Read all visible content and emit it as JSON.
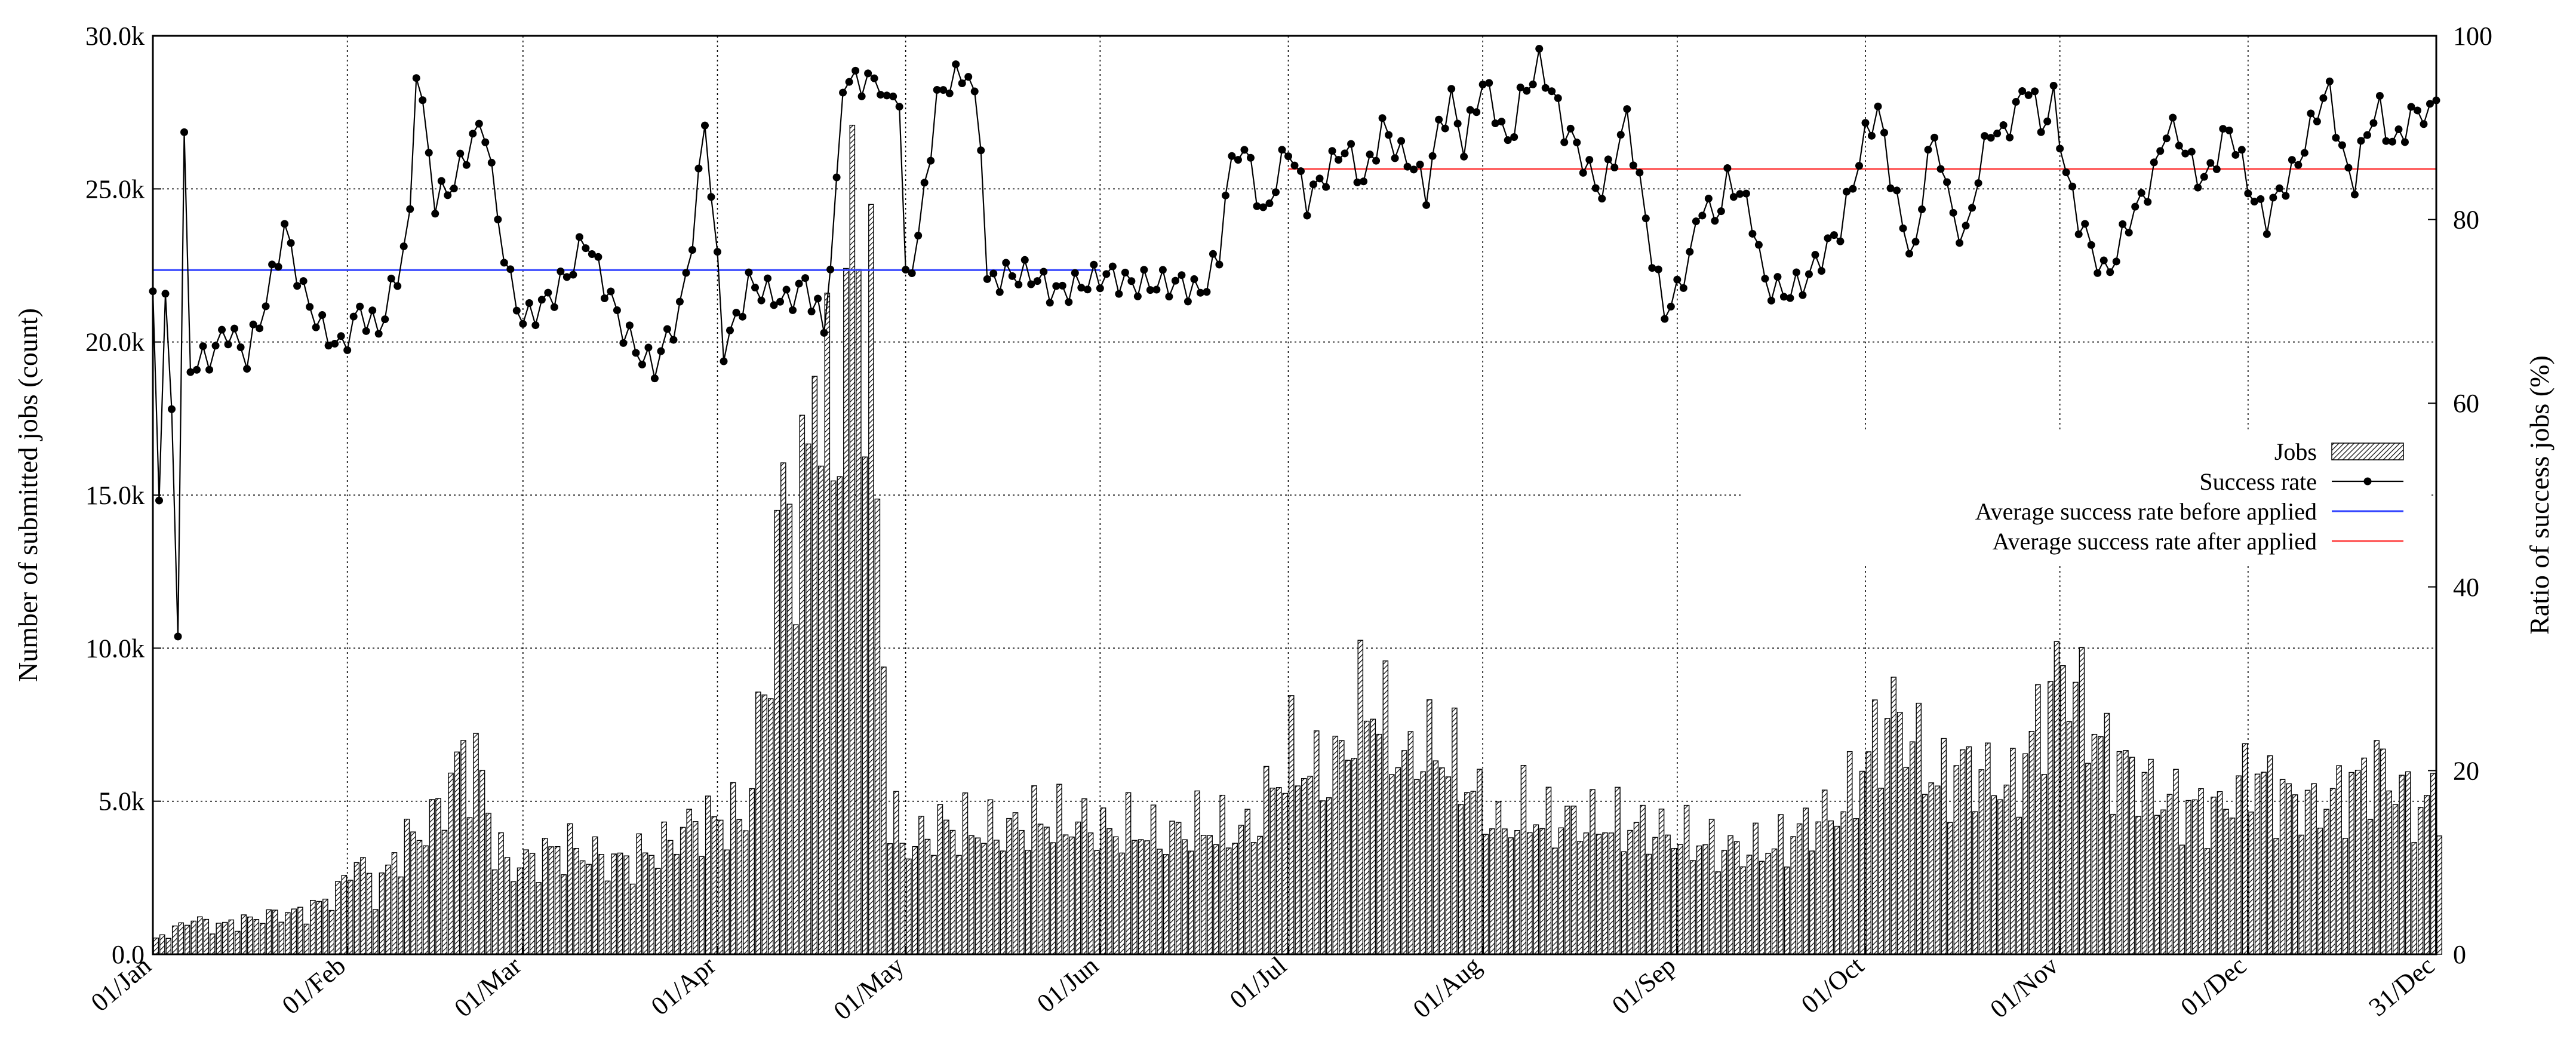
{
  "chart_data": {
    "type": "bar+line",
    "title": "",
    "ylabel_left": "Number of submitted jobs (count)",
    "ylabel_right": "Ratio of success jobs (%)",
    "x_tick_labels": [
      "01/Jan",
      "01/Feb",
      "01/Mar",
      "01/Apr",
      "01/May",
      "01/Jun",
      "01/Jul",
      "01/Aug",
      "01/Sep",
      "01/Oct",
      "01/Nov",
      "01/Dec",
      "31/Dec"
    ],
    "x_tick_days": [
      1,
      32,
      60,
      91,
      121,
      152,
      182,
      213,
      244,
      274,
      305,
      335,
      365
    ],
    "y_left": {
      "range": [
        0,
        30000
      ],
      "tick_values": [
        0,
        5000,
        10000,
        15000,
        20000,
        25000,
        30000
      ],
      "tick_labels": [
        "0.0",
        "5.0k",
        "10.0k",
        "15.0k",
        "20.0k",
        "25.0k",
        "30.0k"
      ]
    },
    "y_right": {
      "range": [
        0,
        100
      ],
      "tick_values": [
        0,
        20,
        40,
        60,
        80,
        100
      ],
      "tick_labels": [
        "0",
        "20",
        "40",
        "60",
        "80",
        "100"
      ]
    },
    "grid": true,
    "legend_position": "right, middle",
    "legend": [
      {
        "label": "Jobs",
        "style": "hatched-bar"
      },
      {
        "label": "Success rate",
        "style": "line-points"
      },
      {
        "label": "Average success rate before applied",
        "style": "line",
        "color": "#3344ff"
      },
      {
        "label": "Average success rate after applied",
        "style": "line",
        "color": "#ff4444"
      }
    ],
    "averages": {
      "before": {
        "value": 74.5,
        "x_range_days": [
          1,
          152
        ],
        "color": "#3344ff"
      },
      "after": {
        "value": 85.5,
        "x_range_days": [
          182,
          365
        ],
        "color": "#ff4444"
      }
    },
    "anchors": {
      "jobs": [
        [
          1,
          500
        ],
        [
          4,
          800
        ],
        [
          7,
          1200
        ],
        [
          10,
          900
        ],
        [
          15,
          1100
        ],
        [
          20,
          1300
        ],
        [
          25,
          1400
        ],
        [
          30,
          2000
        ],
        [
          33,
          3200
        ],
        [
          36,
          2000
        ],
        [
          40,
          3500
        ],
        [
          45,
          4300
        ],
        [
          50,
          6500
        ],
        [
          53,
          5800
        ],
        [
          55,
          3500
        ],
        [
          58,
          2800
        ],
        [
          62,
          3200
        ],
        [
          66,
          3500
        ],
        [
          70,
          3300
        ],
        [
          74,
          3000
        ],
        [
          78,
          3200
        ],
        [
          82,
          3500
        ],
        [
          85,
          4100
        ],
        [
          88,
          4300
        ],
        [
          91,
          4400
        ],
        [
          95,
          4500
        ],
        [
          98,
          8500
        ],
        [
          101,
          15000
        ],
        [
          104,
          14000
        ],
        [
          106,
          20000
        ],
        [
          109,
          16000
        ],
        [
          112,
          24000
        ],
        [
          115,
          20000
        ],
        [
          118,
          4500
        ],
        [
          121,
          3500
        ],
        [
          126,
          4200
        ],
        [
          131,
          4100
        ],
        [
          136,
          4000
        ],
        [
          141,
          4400
        ],
        [
          146,
          4300
        ],
        [
          150,
          4300
        ],
        [
          152,
          4000
        ],
        [
          157,
          4100
        ],
        [
          162,
          3800
        ],
        [
          167,
          4200
        ],
        [
          172,
          4000
        ],
        [
          176,
          4100
        ],
        [
          179,
          5500
        ],
        [
          182,
          6500
        ],
        [
          185,
          6000
        ],
        [
          188,
          5800
        ],
        [
          191,
          7000
        ],
        [
          194,
          8500
        ],
        [
          197,
          7500
        ],
        [
          200,
          6200
        ],
        [
          203,
          6800
        ],
        [
          207,
          6500
        ],
        [
          212,
          5000
        ],
        [
          216,
          4000
        ],
        [
          219,
          4800
        ],
        [
          222,
          4300
        ],
        [
          226,
          4400
        ],
        [
          231,
          4300
        ],
        [
          236,
          4200
        ],
        [
          241,
          4000
        ],
        [
          245,
          3800
        ],
        [
          250,
          3500
        ],
        [
          255,
          3400
        ],
        [
          260,
          3600
        ],
        [
          265,
          4300
        ],
        [
          270,
          4800
        ],
        [
          274,
          6500
        ],
        [
          278,
          8000
        ],
        [
          281,
          7000
        ],
        [
          285,
          5500
        ],
        [
          289,
          6200
        ],
        [
          293,
          5800
        ],
        [
          297,
          5400
        ],
        [
          300,
          7000
        ],
        [
          303,
          8500
        ],
        [
          305,
          9500
        ],
        [
          308,
          8200
        ],
        [
          312,
          6500
        ],
        [
          316,
          6000
        ],
        [
          320,
          5200
        ],
        [
          325,
          4800
        ],
        [
          330,
          4700
        ],
        [
          335,
          6000
        ],
        [
          340,
          5200
        ],
        [
          345,
          4800
        ],
        [
          350,
          5300
        ],
        [
          355,
          6200
        ],
        [
          358,
          5600
        ],
        [
          362,
          4600
        ],
        [
          365,
          5500
        ]
      ],
      "success_rate": [
        [
          1,
          71
        ],
        [
          2,
          51
        ],
        [
          3,
          71
        ],
        [
          4,
          59
        ],
        [
          5,
          36
        ],
        [
          6,
          88
        ],
        [
          7,
          64
        ],
        [
          10,
          65
        ],
        [
          13,
          68
        ],
        [
          16,
          65
        ],
        [
          19,
          71
        ],
        [
          22,
          79
        ],
        [
          25,
          72
        ],
        [
          28,
          68
        ],
        [
          31,
          66
        ],
        [
          34,
          70
        ],
        [
          37,
          68
        ],
        [
          40,
          74
        ],
        [
          42,
          80
        ],
        [
          43,
          97
        ],
        [
          46,
          82
        ],
        [
          49,
          84
        ],
        [
          52,
          89
        ],
        [
          54,
          90
        ],
        [
          56,
          80
        ],
        [
          58,
          73
        ],
        [
          60,
          69
        ],
        [
          62,
          70
        ],
        [
          65,
          72
        ],
        [
          68,
          75
        ],
        [
          70,
          78
        ],
        [
          73,
          73
        ],
        [
          76,
          68
        ],
        [
          79,
          65
        ],
        [
          81,
          64
        ],
        [
          83,
          67
        ],
        [
          85,
          70
        ],
        [
          87,
          78
        ],
        [
          88,
          84
        ],
        [
          89,
          91
        ],
        [
          91,
          75
        ],
        [
          92,
          66
        ],
        [
          94,
          69
        ],
        [
          96,
          73
        ],
        [
          99,
          72
        ],
        [
          102,
          71
        ],
        [
          105,
          73
        ],
        [
          107,
          70
        ],
        [
          108,
          68
        ],
        [
          110,
          83
        ],
        [
          111,
          95
        ],
        [
          114,
          95
        ],
        [
          117,
          95
        ],
        [
          118,
          92
        ],
        [
          119,
          94
        ],
        [
          120,
          93
        ],
        [
          121,
          73
        ],
        [
          123,
          78
        ],
        [
          126,
          93
        ],
        [
          128,
          95
        ],
        [
          131,
          96
        ],
        [
          133,
          89
        ],
        [
          134,
          73
        ],
        [
          137,
          74
        ],
        [
          141,
          74
        ],
        [
          145,
          72
        ],
        [
          149,
          73
        ],
        [
          153,
          74
        ],
        [
          157,
          73
        ],
        [
          161,
          73
        ],
        [
          165,
          73
        ],
        [
          168,
          72
        ],
        [
          171,
          76
        ],
        [
          172,
          83
        ],
        [
          174,
          88
        ],
        [
          176,
          86
        ],
        [
          178,
          80
        ],
        [
          182,
          88
        ],
        [
          185,
          82
        ],
        [
          188,
          85
        ],
        [
          191,
          88
        ],
        [
          194,
          84
        ],
        [
          197,
          90
        ],
        [
          200,
          87
        ],
        [
          202,
          86
        ],
        [
          204,
          83
        ],
        [
          206,
          90
        ],
        [
          208,
          93
        ],
        [
          210,
          88
        ],
        [
          213,
          95
        ],
        [
          215,
          92
        ],
        [
          217,
          88
        ],
        [
          219,
          93
        ],
        [
          222,
          97
        ],
        [
          224,
          94
        ],
        [
          226,
          90
        ],
        [
          228,
          88
        ],
        [
          230,
          85
        ],
        [
          232,
          83
        ],
        [
          234,
          87
        ],
        [
          236,
          91
        ],
        [
          238,
          84
        ],
        [
          240,
          76
        ],
        [
          242,
          70
        ],
        [
          244,
          72
        ],
        [
          246,
          76
        ],
        [
          248,
          82
        ],
        [
          250,
          80
        ],
        [
          252,
          84
        ],
        [
          254,
          83
        ],
        [
          256,
          80
        ],
        [
          258,
          73
        ],
        [
          261,
          72
        ],
        [
          264,
          73
        ],
        [
          267,
          76
        ],
        [
          270,
          79
        ],
        [
          272,
          84
        ],
        [
          274,
          89
        ],
        [
          276,
          92
        ],
        [
          278,
          85
        ],
        [
          280,
          79
        ],
        [
          282,
          76
        ],
        [
          284,
          88
        ],
        [
          286,
          87
        ],
        [
          288,
          80
        ],
        [
          290,
          78
        ],
        [
          292,
          85
        ],
        [
          294,
          90
        ],
        [
          296,
          89
        ],
        [
          298,
          92
        ],
        [
          300,
          95
        ],
        [
          302,
          90
        ],
        [
          304,
          93
        ],
        [
          306,
          85
        ],
        [
          308,
          80
        ],
        [
          310,
          77
        ],
        [
          312,
          74
        ],
        [
          314,
          76
        ],
        [
          316,
          80
        ],
        [
          318,
          82
        ],
        [
          320,
          85
        ],
        [
          322,
          90
        ],
        [
          324,
          89
        ],
        [
          326,
          86
        ],
        [
          328,
          84
        ],
        [
          330,
          87
        ],
        [
          332,
          90
        ],
        [
          334,
          86
        ],
        [
          336,
          82
        ],
        [
          338,
          80
        ],
        [
          340,
          83
        ],
        [
          342,
          85
        ],
        [
          344,
          88
        ],
        [
          346,
          92
        ],
        [
          348,
          94
        ],
        [
          350,
          87
        ],
        [
          352,
          84
        ],
        [
          354,
          90
        ],
        [
          356,
          92
        ],
        [
          358,
          88
        ],
        [
          360,
          90
        ],
        [
          362,
          92
        ],
        [
          364,
          91
        ],
        [
          365,
          94
        ]
      ]
    }
  }
}
